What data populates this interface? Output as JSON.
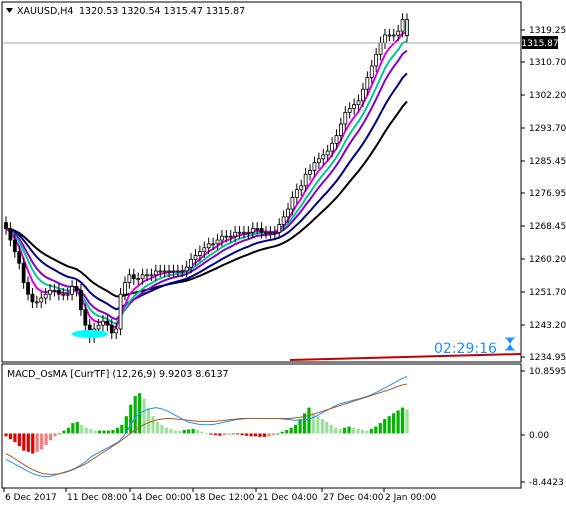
{
  "main_chart": {
    "symbol_line": "XAUUSD,H4",
    "ohlc_text": "1320.53 1320.54 1315.47 1315.87",
    "current_price_label": "1315.87",
    "countdown": "02:29:16",
    "y_ticks": [
      "1319.25",
      "1310.70",
      "1302.20",
      "1293.70",
      "1285.45",
      "1276.95",
      "1268.45",
      "1260.20",
      "1251.70",
      "1243.20",
      "1234.95"
    ]
  },
  "indicator": {
    "label": "MACD_OsMA [CurrTF] (12,26,9) 9.9203 8.6137",
    "y_ticks": [
      "10.8595",
      "0.00",
      "-8.4423"
    ]
  },
  "x_ticks": [
    "6 Dec 2017",
    "11 Dec 08:00",
    "14 Dec 00:00",
    "18 Dec 12:00",
    "21 Dec 04:00",
    "27 Dec 04:00",
    "2 Jan 00:00"
  ],
  "colors": {
    "candle": "#000000",
    "last_candle_body": "#c8e6c8",
    "ma_black": "#000000",
    "ma_navy": "#000080",
    "ma_purple": "#8a00c8",
    "ma_magenta": "#e000e0",
    "ma_teal": "#00c896",
    "countdown_text": "#1e90ff",
    "hourglass": "#1e90ff",
    "support_line": "#c00000",
    "macd_fast": "#1e90ff",
    "macd_slow": "#b05a1e",
    "hist_positive": "#00b400",
    "hist_positive_weak": "#9be09b",
    "hist_negative": "#e00000",
    "hist_negative_weak": "#f08080",
    "swing_highlight": "#00ffff"
  },
  "chart_data": [
    {
      "type": "candlestick",
      "title": "XAUUSD,H4",
      "ylim": [
        1232.5,
        1323.5
      ],
      "closes": [
        1266,
        1263,
        1260,
        1257,
        1252,
        1249,
        1247,
        1247,
        1248,
        1249,
        1250,
        1250,
        1249,
        1249,
        1249,
        1251,
        1250,
        1245,
        1241,
        1238,
        1240,
        1241,
        1242,
        1241,
        1239,
        1240,
        1249,
        1252,
        1254,
        1253,
        1253,
        1254,
        1254,
        1254,
        1255,
        1255,
        1255,
        1255,
        1255,
        1255,
        1255,
        1256,
        1258,
        1259,
        1260,
        1261,
        1262,
        1262,
        1263,
        1264,
        1264,
        1264,
        1265,
        1265,
        1265,
        1265,
        1266,
        1266,
        1265,
        1265,
        1265,
        1265,
        1267,
        1269,
        1271,
        1274,
        1276,
        1277,
        1280,
        1281,
        1283,
        1284,
        1285,
        1286,
        1288,
        1290,
        1293,
        1296,
        1297,
        1298,
        1299,
        1302,
        1305,
        1308,
        1311,
        1314,
        1316,
        1316,
        1316,
        1317,
        1320,
        1316
      ],
      "last_close": 1315.87
    },
    {
      "type": "bar",
      "title": "MACD_OsMA [CurrTF] (12,26,9)",
      "ylim": [
        -8.4423,
        10.8595
      ],
      "osma": [
        -0.5,
        -1.0,
        -1.5,
        -2.2,
        -3.0,
        -3.2,
        -3.5,
        -3.2,
        -2.8,
        -2.0,
        -1.2,
        -0.5,
        0.0,
        0.5,
        1.0,
        1.8,
        2.0,
        1.5,
        1.0,
        0.8,
        0.5,
        0.5,
        0.5,
        0.5,
        0.6,
        1.0,
        1.5,
        3.0,
        5.0,
        6.5,
        7.0,
        6.0,
        4.5,
        3.0,
        2.0,
        1.5,
        1.0,
        0.8,
        0.5,
        0.4,
        0.6,
        0.7,
        0.8,
        0.6,
        0.3,
        0.0,
        -0.2,
        -0.3,
        -0.4,
        -0.3,
        -0.2,
        0.0,
        -0.1,
        -0.3,
        -0.4,
        -0.5,
        -0.5,
        -0.6,
        -0.6,
        -0.5,
        -0.3,
        0.0,
        0.3,
        0.6,
        1.0,
        1.5,
        2.5,
        3.5,
        4.5,
        3.5,
        3.0,
        2.5,
        2.0,
        1.5,
        1.0,
        0.8,
        1.0,
        1.2,
        1.0,
        0.8,
        0.6,
        0.5,
        0.8,
        1.2,
        1.8,
        2.5,
        3.0,
        3.5,
        4.0,
        4.5,
        4.2
      ],
      "macd_fast": [
        -4.5,
        -5.0,
        -5.5,
        -6.0,
        -6.5,
        -7.0,
        -7.3,
        -7.5,
        -7.5,
        -7.3,
        -7.0,
        -6.7,
        -6.4,
        -6.0,
        -5.5,
        -4.8,
        -4.0,
        -3.5,
        -3.0,
        -2.5,
        -2.0,
        -1.5,
        -0.5,
        1.0,
        2.5,
        3.5,
        4.0,
        4.3,
        4.5,
        4.3,
        4.0,
        3.5,
        3.0,
        2.5,
        2.0,
        1.8,
        1.6,
        1.5,
        1.5,
        1.6,
        1.8,
        2.0,
        2.2,
        2.4,
        2.5,
        2.6,
        2.6,
        2.6,
        2.6,
        2.6,
        2.6,
        2.6,
        2.5,
        2.4,
        2.3,
        2.3,
        2.4,
        2.6,
        3.0,
        3.5,
        4.0,
        4.5,
        5.0,
        5.3,
        5.5,
        5.8,
        6.0,
        6.3,
        6.6,
        7.0,
        7.5,
        8.0,
        8.5,
        9.0,
        9.5,
        9.9
      ],
      "macd_slow": [
        -3.5,
        -4.0,
        -4.6,
        -5.2,
        -5.8,
        -6.3,
        -6.7,
        -7.0,
        -7.1,
        -7.1,
        -7.0,
        -6.8,
        -6.5,
        -6.1,
        -5.7,
        -5.2,
        -4.6,
        -4.0,
        -3.4,
        -2.8,
        -2.2,
        -1.6,
        -0.9,
        -0.2,
        0.5,
        1.1,
        1.6,
        2.0,
        2.3,
        2.5,
        2.6,
        2.6,
        2.5,
        2.4,
        2.3,
        2.2,
        2.1,
        2.1,
        2.1,
        2.1,
        2.2,
        2.3,
        2.4,
        2.5,
        2.6,
        2.6,
        2.6,
        2.6,
        2.6,
        2.6,
        2.6,
        2.6,
        2.6,
        2.6,
        2.7,
        2.8,
        3.0,
        3.2,
        3.5,
        3.8,
        4.1,
        4.4,
        4.7,
        5.0,
        5.3,
        5.6,
        5.9,
        6.2,
        6.5,
        6.8,
        7.1,
        7.4,
        7.7,
        8.1,
        8.4,
        8.6
      ]
    }
  ]
}
